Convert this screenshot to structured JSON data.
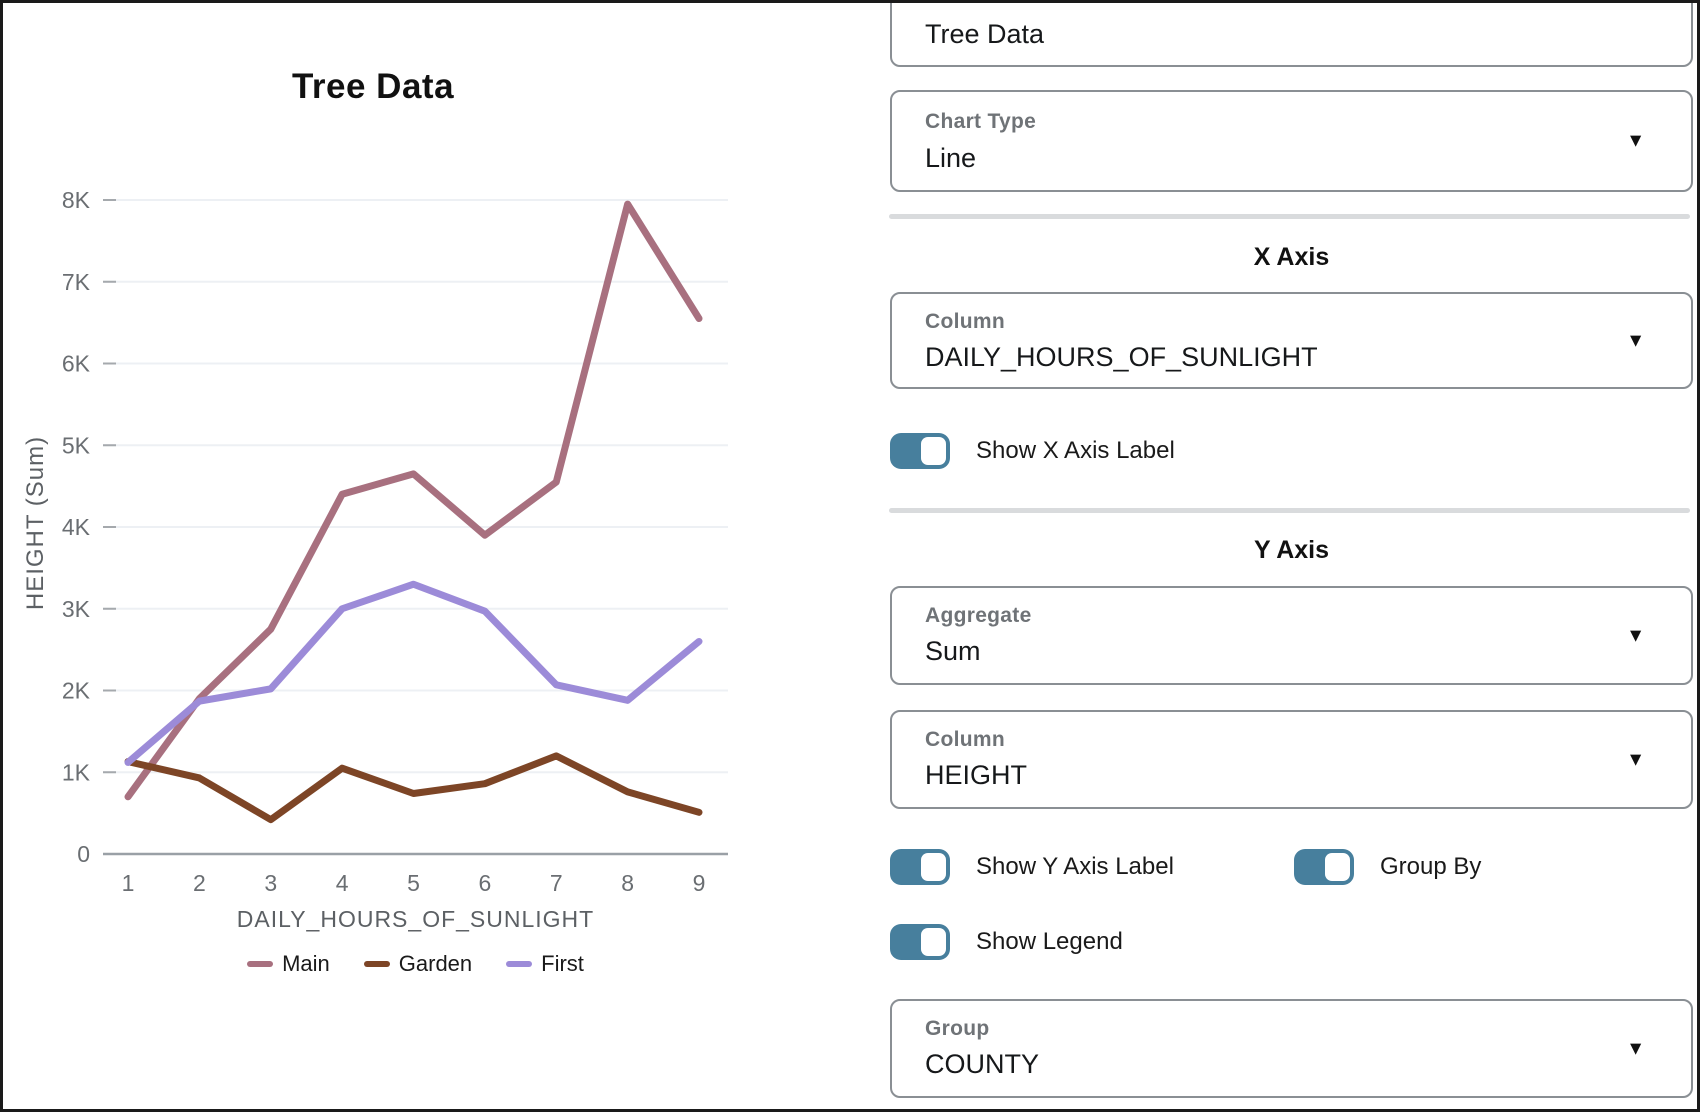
{
  "chart_data": {
    "type": "line",
    "title": "Tree Data",
    "xlabel": "DAILY_HOURS_OF_SUNLIGHT",
    "ylabel": "HEIGHT (Sum)",
    "x": [
      1,
      2,
      3,
      4,
      5,
      6,
      7,
      8,
      9
    ],
    "ylim": [
      0,
      8000
    ],
    "yticks": [
      {
        "label": "0",
        "value": 0
      },
      {
        "label": "1K",
        "value": 1000
      },
      {
        "label": "2K",
        "value": 2000
      },
      {
        "label": "3K",
        "value": 3000
      },
      {
        "label": "4K",
        "value": 4000
      },
      {
        "label": "5K",
        "value": 5000
      },
      {
        "label": "6K",
        "value": 6000
      },
      {
        "label": "7K",
        "value": 7000
      },
      {
        "label": "8K",
        "value": 8000
      }
    ],
    "grid": true,
    "legend_position": "bottom",
    "series": [
      {
        "name": "Main",
        "color": "#a8707f",
        "values": [
          700,
          1900,
          2750,
          4400,
          4650,
          3900,
          4550,
          7950,
          6550
        ]
      },
      {
        "name": "Garden",
        "color": "#7d4526",
        "values": [
          1130,
          930,
          420,
          1050,
          740,
          860,
          1200,
          760,
          510
        ]
      },
      {
        "name": "First",
        "color": "#9c8bd8",
        "values": [
          1120,
          1870,
          2020,
          3000,
          3300,
          2970,
          2070,
          1880,
          2600
        ]
      }
    ]
  },
  "panel": {
    "title_input": {
      "value": "Tree Data"
    },
    "chart_type": {
      "label": "Chart Type",
      "value": "Line"
    },
    "x_axis": {
      "heading": "X Axis",
      "column": {
        "label": "Column",
        "value": "DAILY_HOURS_OF_SUNLIGHT"
      },
      "show_label_toggle": {
        "label": "Show X Axis Label",
        "on": true
      }
    },
    "y_axis": {
      "heading": "Y Axis",
      "aggregate": {
        "label": "Aggregate",
        "value": "Sum"
      },
      "column": {
        "label": "Column",
        "value": "HEIGHT"
      },
      "show_label_toggle": {
        "label": "Show Y Axis Label",
        "on": true
      },
      "group_by_toggle": {
        "label": "Group By",
        "on": true
      },
      "show_legend_toggle": {
        "label": "Show Legend",
        "on": true
      }
    },
    "group": {
      "label": "Group",
      "value": "COUNTY"
    }
  },
  "colors": {
    "toggle_on": "#477f9d",
    "series_main": "#a8707f",
    "series_garden": "#7d4526",
    "series_first": "#9c8bd8",
    "gridline": "#edf0f4",
    "axis": "#9aa0a6"
  }
}
